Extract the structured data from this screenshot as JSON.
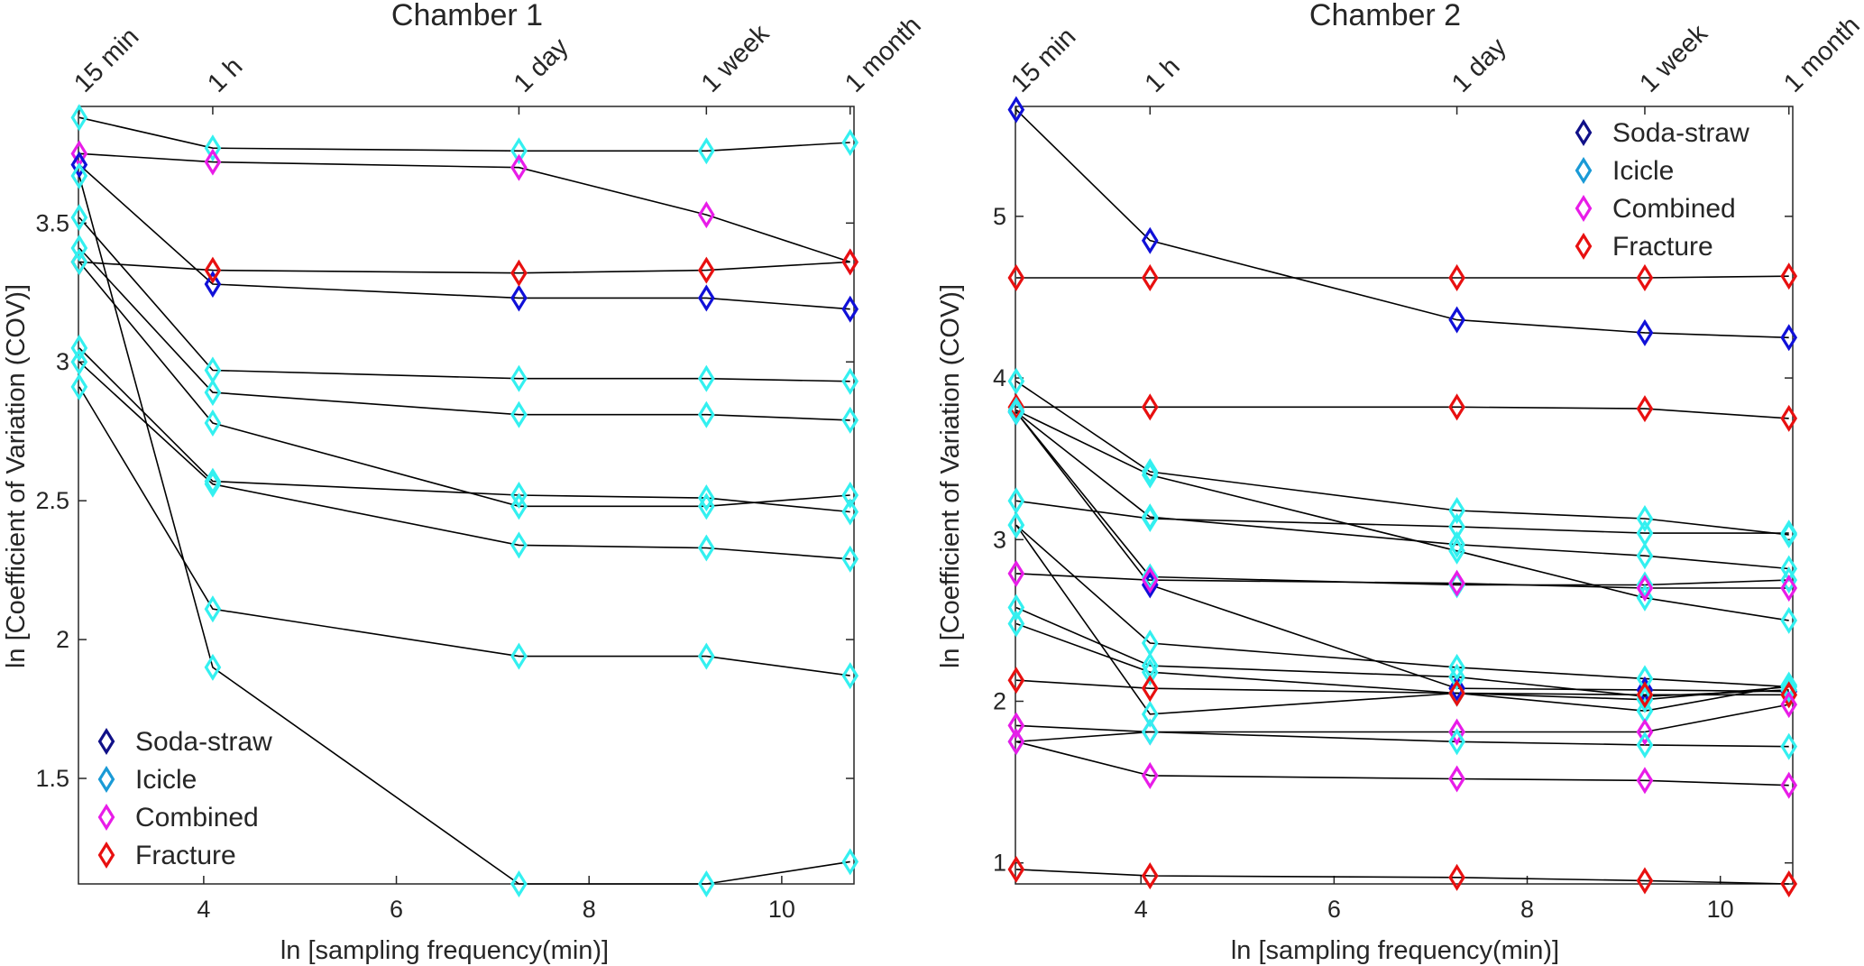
{
  "chart_data": [
    {
      "type": "line",
      "title": "Chamber 1",
      "xlabel": "ln [sampling frequency(min)]",
      "ylabel": "ln [Coefficient of Variation (COV)]",
      "xlim": [
        2.7,
        10.75
      ],
      "ylim": [
        1.12,
        3.92
      ],
      "xticks": [
        4,
        6,
        8,
        10
      ],
      "yticks": [
        1.5,
        2,
        2.5,
        3,
        3.5
      ],
      "ytick_labels": [
        "1.5",
        "2",
        "2.5",
        "3",
        "3.5"
      ],
      "top_ticks": [
        {
          "label": "15 min",
          "x": 2.708
        },
        {
          "label": "1 h",
          "x": 4.094
        },
        {
          "label": "1 day",
          "x": 7.272
        },
        {
          "label": "1 week",
          "x": 9.218
        },
        {
          "label": "1 month",
          "x": 10.71
        }
      ],
      "x": [
        2.708,
        4.094,
        7.272,
        9.218,
        10.71
      ],
      "legend": {
        "position": "bottom-left",
        "entries": [
          "Soda-straw",
          "Icicle",
          "Combined",
          "Fracture"
        ]
      },
      "series": [
        {
          "type": "Icicle",
          "values": [
            3.88,
            3.77,
            3.76,
            3.76,
            3.79
          ]
        },
        {
          "type": "Combined",
          "values": [
            3.75,
            3.72,
            3.7,
            3.53,
            3.36
          ]
        },
        {
          "type": "Soda-straw",
          "values": [
            3.71,
            3.28,
            3.23,
            3.23,
            3.19
          ]
        },
        {
          "type": "Fracture",
          "values": [
            3.36,
            3.33,
            3.32,
            3.33,
            3.36
          ]
        },
        {
          "type": "Icicle",
          "values": [
            3.52,
            2.97,
            2.94,
            2.94,
            2.93
          ]
        },
        {
          "type": "Icicle",
          "values": [
            3.41,
            2.89,
            2.81,
            2.81,
            2.79
          ]
        },
        {
          "type": "Icicle",
          "values": [
            3.36,
            2.78,
            2.48,
            2.48,
            2.52
          ]
        },
        {
          "type": "Icicle",
          "values": [
            3.05,
            2.57,
            2.52,
            2.51,
            2.46
          ]
        },
        {
          "type": "Icicle",
          "values": [
            3.0,
            2.56,
            2.34,
            2.33,
            2.29
          ]
        },
        {
          "type": "Icicle",
          "values": [
            2.91,
            2.11,
            1.94,
            1.94,
            1.87
          ]
        },
        {
          "type": "Icicle",
          "values": [
            3.67,
            1.9,
            1.12,
            1.12,
            1.2
          ]
        }
      ]
    },
    {
      "type": "line",
      "title": "Chamber 2",
      "xlabel": "ln [sampling frequency(min)]",
      "ylabel": "ln [Coefficient of Variation (COV)]",
      "xlim": [
        2.7,
        10.75
      ],
      "ylim": [
        0.87,
        5.68
      ],
      "xticks": [
        4,
        6,
        8,
        10
      ],
      "yticks": [
        1,
        2,
        3,
        4,
        5
      ],
      "ytick_labels": [
        "1",
        "2",
        "3",
        "4",
        "5"
      ],
      "top_ticks": [
        {
          "label": "15 min",
          "x": 2.708
        },
        {
          "label": "1 h",
          "x": 4.094
        },
        {
          "label": "1 day",
          "x": 7.272
        },
        {
          "label": "1 week",
          "x": 9.218
        },
        {
          "label": "1 month",
          "x": 10.71
        }
      ],
      "x": [
        2.708,
        4.094,
        7.272,
        9.218,
        10.71
      ],
      "legend": {
        "position": "top-right",
        "entries": [
          "Soda-straw",
          "Icicle",
          "Combined",
          "Fracture"
        ]
      },
      "series": [
        {
          "type": "Soda-straw",
          "values": [
            5.66,
            4.85,
            4.36,
            4.28,
            4.25
          ]
        },
        {
          "type": "Fracture",
          "values": [
            4.62,
            4.62,
            4.62,
            4.62,
            4.63
          ]
        },
        {
          "type": "Icicle",
          "values": [
            3.98,
            3.42,
            3.18,
            3.13,
            3.03
          ]
        },
        {
          "type": "Fracture",
          "values": [
            3.82,
            3.82,
            3.82,
            3.81,
            3.75
          ]
        },
        {
          "type": "Icicle",
          "values": [
            3.8,
            3.4,
            2.93,
            2.64,
            2.5
          ]
        },
        {
          "type": "Icicle",
          "values": [
            3.24,
            3.13,
            3.08,
            3.04,
            3.04
          ]
        },
        {
          "type": "Icicle",
          "values": [
            3.79,
            3.14,
            2.97,
            2.9,
            2.82
          ]
        },
        {
          "type": "Soda-straw",
          "values": [
            3.79,
            2.72,
            2.08,
            2.07,
            2.06
          ]
        },
        {
          "type": "Icicle",
          "values": [
            3.79,
            2.77,
            2.72,
            2.72,
            2.75
          ]
        },
        {
          "type": "Combined",
          "values": [
            2.79,
            2.75,
            2.73,
            2.7,
            2.7
          ]
        },
        {
          "type": "Icicle",
          "values": [
            3.09,
            2.36,
            2.21,
            2.14,
            2.09
          ]
        },
        {
          "type": "Icicle",
          "values": [
            2.58,
            2.22,
            2.15,
            2.03,
            2.07
          ]
        },
        {
          "type": "Icicle",
          "values": [
            2.48,
            2.18,
            2.05,
            1.94,
            2.1
          ]
        },
        {
          "type": "Icicle",
          "values": [
            3.09,
            1.92,
            2.05,
            2.01,
            2.09
          ]
        },
        {
          "type": "Fracture",
          "values": [
            2.13,
            2.08,
            2.05,
            2.04,
            2.04
          ]
        },
        {
          "type": "Combined",
          "values": [
            1.85,
            1.81,
            1.81,
            1.81,
            1.98
          ]
        },
        {
          "type": "Icicle",
          "values": [
            1.75,
            1.81,
            1.75,
            1.73,
            1.72
          ]
        },
        {
          "type": "Combined",
          "values": [
            1.75,
            1.54,
            1.52,
            1.51,
            1.48
          ]
        },
        {
          "type": "Fracture",
          "values": [
            0.96,
            0.92,
            0.91,
            0.89,
            0.87
          ]
        }
      ]
    }
  ],
  "colors": {
    "Soda-straw": "#1010d8",
    "Icicle": "#33f0f0",
    "Combined": "#e81ce8",
    "Fracture": "#e81010",
    "legend_Soda-straw": "#101088",
    "legend_Icicle": "#1a9ad6",
    "legend_Combined": "#e81ce8",
    "legend_Fracture": "#e81010",
    "line": "#000000",
    "axis": "#262626"
  }
}
